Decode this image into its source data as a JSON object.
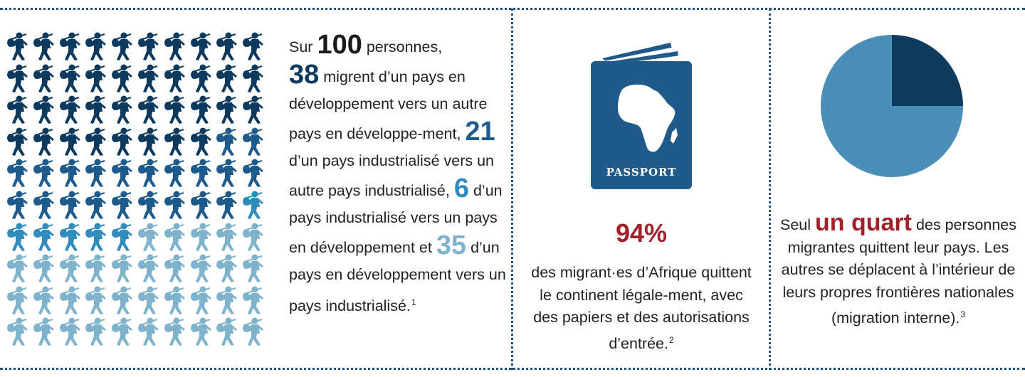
{
  "colors": {
    "dark": "#0b3a5e",
    "mid": "#1c5b8c",
    "bright": "#2f8cbd",
    "light": "#7fb3cc",
    "red": "#a1212b",
    "passport": "#1f5a8a",
    "pie_light": "#4a8fb8",
    "pie_dark": "#0f3b5e"
  },
  "grid": {
    "total": 100,
    "groups": [
      38,
      21,
      6,
      35
    ]
  },
  "text1": {
    "p1": "Sur ",
    "n100": "100",
    "p2": " personnes,",
    "n38": "38",
    "p3": " migrent d’un pays en développement vers un autre pays en développe-ment,",
    "n21": "21",
    "p4": " d’un pays industrialisé vers un autre pays industrialisé,",
    "n6": "6",
    "p5": " d’un pays industrialisé vers un pays en développement et",
    "n35": "35",
    "p6": " d’un pays en développement vers un pays industrialisé.",
    "fn": "1"
  },
  "passport": {
    "label": "PASSPORT"
  },
  "stat2": {
    "pct": "94%",
    "text": "des migrant·es d’Afrique quittent le continent légale-ment, avec des papiers et des autorisations d’entrée.",
    "fn": "2"
  },
  "chart_data": {
    "type": "pie",
    "values": [
      25,
      75
    ]
  },
  "stat3": {
    "p1": "Seul ",
    "quart": "un quart",
    "p2": " des personnes migrantes quittent leur pays. Les autres se déplacent à l’intérieur de leurs propres frontières nationales (migration interne).",
    "fn": "3"
  }
}
